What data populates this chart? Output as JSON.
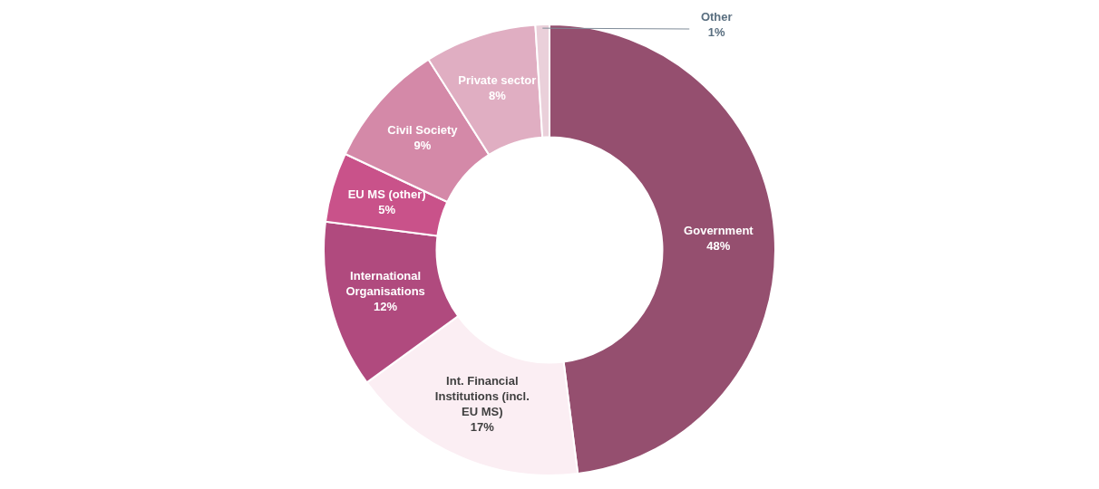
{
  "chart_data": {
    "type": "donut",
    "categories": [
      "Government",
      "Int. Financial Institutions (incl. EU MS)",
      "International Organisations",
      "EU MS (other)",
      "Civil Society",
      "Private sector",
      "Other"
    ],
    "values": [
      48,
      17,
      12,
      5,
      9,
      8,
      1
    ],
    "value_labels": [
      "48%",
      "17%",
      "12%",
      "5%",
      "9%",
      "8%",
      "1%"
    ],
    "colors": [
      "#954f6f",
      "#fbeef3",
      "#b04a7e",
      "#c9528a",
      "#d489a8",
      "#e0aec2",
      "#ead0da"
    ],
    "legend": false
  }
}
